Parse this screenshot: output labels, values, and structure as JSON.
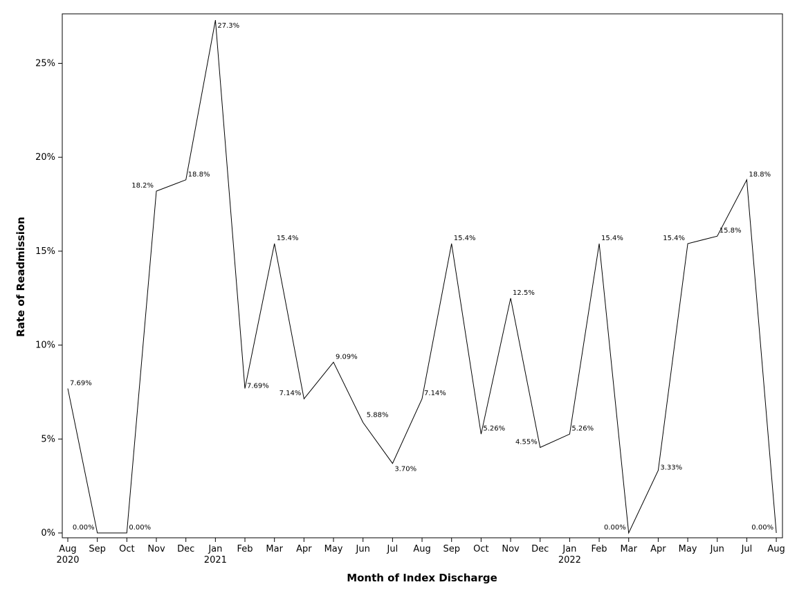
{
  "chart_data": {
    "type": "line",
    "title": "",
    "xlabel": "Month of Index Discharge",
    "ylabel": "Rate of Readmission",
    "ylim": [
      0,
      27.3
    ],
    "y_ticks": [
      {
        "value": 0,
        "label": "0%"
      },
      {
        "value": 5,
        "label": "5%"
      },
      {
        "value": 10,
        "label": "10%"
      },
      {
        "value": 15,
        "label": "15%"
      },
      {
        "value": 20,
        "label": "20%"
      },
      {
        "value": 25,
        "label": "25%"
      }
    ],
    "x_ticks": [
      {
        "month": "Aug",
        "year": "2020"
      },
      {
        "month": "Sep",
        "year": ""
      },
      {
        "month": "Oct",
        "year": ""
      },
      {
        "month": "Nov",
        "year": ""
      },
      {
        "month": "Dec",
        "year": ""
      },
      {
        "month": "Jan",
        "year": "2021"
      },
      {
        "month": "Feb",
        "year": ""
      },
      {
        "month": "Mar",
        "year": ""
      },
      {
        "month": "Apr",
        "year": ""
      },
      {
        "month": "May",
        "year": ""
      },
      {
        "month": "Jun",
        "year": ""
      },
      {
        "month": "Jul",
        "year": ""
      },
      {
        "month": "Aug",
        "year": ""
      },
      {
        "month": "Sep",
        "year": ""
      },
      {
        "month": "Oct",
        "year": ""
      },
      {
        "month": "Nov",
        "year": ""
      },
      {
        "month": "Dec",
        "year": ""
      },
      {
        "month": "Jan",
        "year": "2022"
      },
      {
        "month": "Feb",
        "year": ""
      },
      {
        "month": "Mar",
        "year": ""
      },
      {
        "month": "Apr",
        "year": ""
      },
      {
        "month": "May",
        "year": ""
      },
      {
        "month": "Jun",
        "year": ""
      },
      {
        "month": "Jul",
        "year": ""
      },
      {
        "month": "Aug",
        "year": ""
      }
    ],
    "x": [
      "Aug 2020",
      "Sep 2020",
      "Oct 2020",
      "Nov 2020",
      "Dec 2020",
      "Jan 2021",
      "Feb 2021",
      "Mar 2021",
      "Apr 2021",
      "May 2021",
      "Jun 2021",
      "Jul 2021",
      "Aug 2021",
      "Sep 2021",
      "Oct 2021",
      "Nov 2021",
      "Dec 2021",
      "Jan 2022",
      "Feb 2022",
      "Mar 2022",
      "Apr 2022",
      "May 2022",
      "Jun 2022",
      "Jul 2022",
      "Aug 2022"
    ],
    "series": [
      {
        "values": [
          7.69,
          0,
          0,
          18.2,
          18.8,
          27.3,
          7.69,
          15.4,
          7.14,
          9.09,
          5.88,
          3.7,
          7.14,
          15.4,
          5.26,
          12.5,
          4.55,
          5.26,
          15.4,
          0,
          3.33,
          15.4,
          15.8,
          18.8,
          0
        ],
        "labels": [
          "7.69%",
          "0.00%",
          "0.00%",
          "18.2%",
          "18.8%",
          "27.3%",
          "7.69%",
          "15.4%",
          "7.14%",
          "9.09%",
          "5.88%",
          "3.70%",
          "7.14%",
          "15.4%",
          "5.26%",
          "12.5%",
          "4.55%",
          "5.26%",
          "15.4%",
          "0.00%",
          "3.33%",
          "15.4%",
          "15.8%",
          "18.8%",
          "0.00%"
        ],
        "color": "#000000"
      }
    ],
    "grid": false,
    "legend": "none"
  }
}
